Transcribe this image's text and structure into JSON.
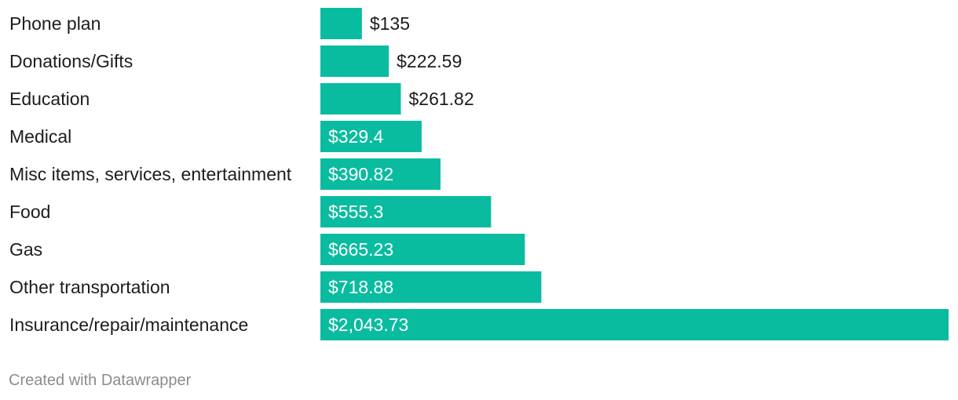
{
  "chart_data": {
    "type": "bar",
    "orientation": "horizontal",
    "categories": [
      "Phone plan",
      "Donations/Gifts",
      "Education",
      "Medical",
      "Misc items, services, entertainment",
      "Food",
      "Gas",
      "Other transportation",
      "Insurance/repair/maintenance"
    ],
    "values": [
      135,
      222.59,
      261.82,
      329.4,
      390.82,
      555.3,
      665.23,
      718.88,
      2043.73
    ],
    "value_labels": [
      "$135",
      "$222.59",
      "$261.82",
      "$329.4",
      "$390.82",
      "$555.3",
      "$665.23",
      "$718.88",
      "$2,043.73"
    ],
    "title": "",
    "xlabel": "",
    "ylabel": "",
    "xlim": [
      0,
      2043.73
    ],
    "grid": false,
    "legend": "none",
    "bar_color": "#0abc9f",
    "label_color_inside": "#ffffff",
    "label_color_outside": "#1d1d1d"
  },
  "footer": {
    "credit": "Created with Datawrapper"
  }
}
